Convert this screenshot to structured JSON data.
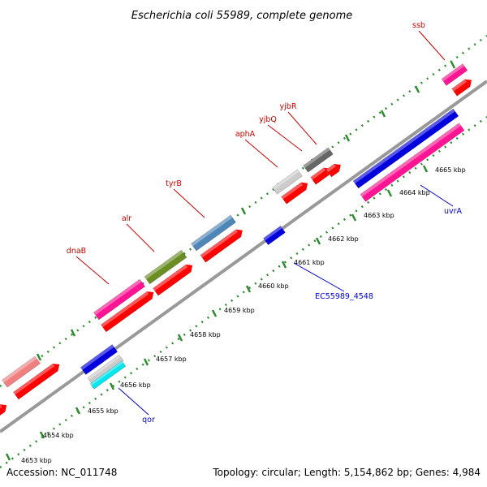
{
  "title": "Escherichia coli 55989, complete genome",
  "footer": {
    "accession": "Accession: NC_011748",
    "topology": "Topology: circular; Length: 5,154,862 bp; Genes: 4,984"
  },
  "colors": {
    "backbone": "#8c8c8c",
    "tick": "#2e8b2e",
    "label_forward": "#cc0000",
    "label_reverse": "#0000cc",
    "cds": "#ff0000"
  },
  "ticks": [
    {
      "label": "4653 kbp"
    },
    {
      "label": "4654 kbp"
    },
    {
      "label": "4655 kbp"
    },
    {
      "label": "4656 kbp"
    },
    {
      "label": "4657 kbp"
    },
    {
      "label": "4658 kbp"
    },
    {
      "label": "4659 kbp"
    },
    {
      "label": "4660 kbp"
    },
    {
      "label": "4661 kbp"
    },
    {
      "label": "4662 kbp"
    },
    {
      "label": "4663 kbp"
    },
    {
      "label": "4664 kbp"
    },
    {
      "label": "4665 kbp"
    }
  ],
  "gene_labels": [
    {
      "text": "ssb",
      "strand": "forward"
    },
    {
      "text": "yjbR",
      "strand": "forward"
    },
    {
      "text": "yjbQ",
      "strand": "forward"
    },
    {
      "text": "aphA",
      "strand": "forward"
    },
    {
      "text": "tyrB",
      "strand": "forward"
    },
    {
      "text": "alr",
      "strand": "forward"
    },
    {
      "text": "dnaB",
      "strand": "forward"
    },
    {
      "text": "uvrA",
      "strand": "reverse"
    },
    {
      "text": "EC55989_4548",
      "strand": "reverse"
    },
    {
      "text": "qor",
      "strand": "reverse"
    }
  ],
  "features": [
    {
      "name": "ssb",
      "strand": "forward",
      "color": "#ff1493"
    },
    {
      "name": "yjbR",
      "strand": "forward",
      "color": "#666666"
    },
    {
      "name": "yjbQ",
      "strand": "forward",
      "color": "#666666"
    },
    {
      "name": "aphA",
      "strand": "forward",
      "color": "#cccccc"
    },
    {
      "name": "tyrB",
      "strand": "forward",
      "color": "#4f86b8"
    },
    {
      "name": "alr",
      "strand": "forward",
      "color": "#6b8e23"
    },
    {
      "name": "dnaB",
      "strand": "forward",
      "color": "#ff1493"
    },
    {
      "name": "unlabeled-forward-gene",
      "strand": "forward",
      "color": "#f08080"
    },
    {
      "name": "uvrA",
      "strand": "reverse",
      "color": "#0000dd"
    },
    {
      "name": "EC55989_4548",
      "strand": "reverse",
      "color": "#0000dd"
    },
    {
      "name": "qor",
      "strand": "reverse",
      "color": "#0000dd"
    },
    {
      "name": "qor-neighbor",
      "strand": "reverse",
      "color": "#cccccc"
    },
    {
      "name": "qor-neighbor-2",
      "strand": "reverse",
      "color": "#00e5ee"
    }
  ]
}
